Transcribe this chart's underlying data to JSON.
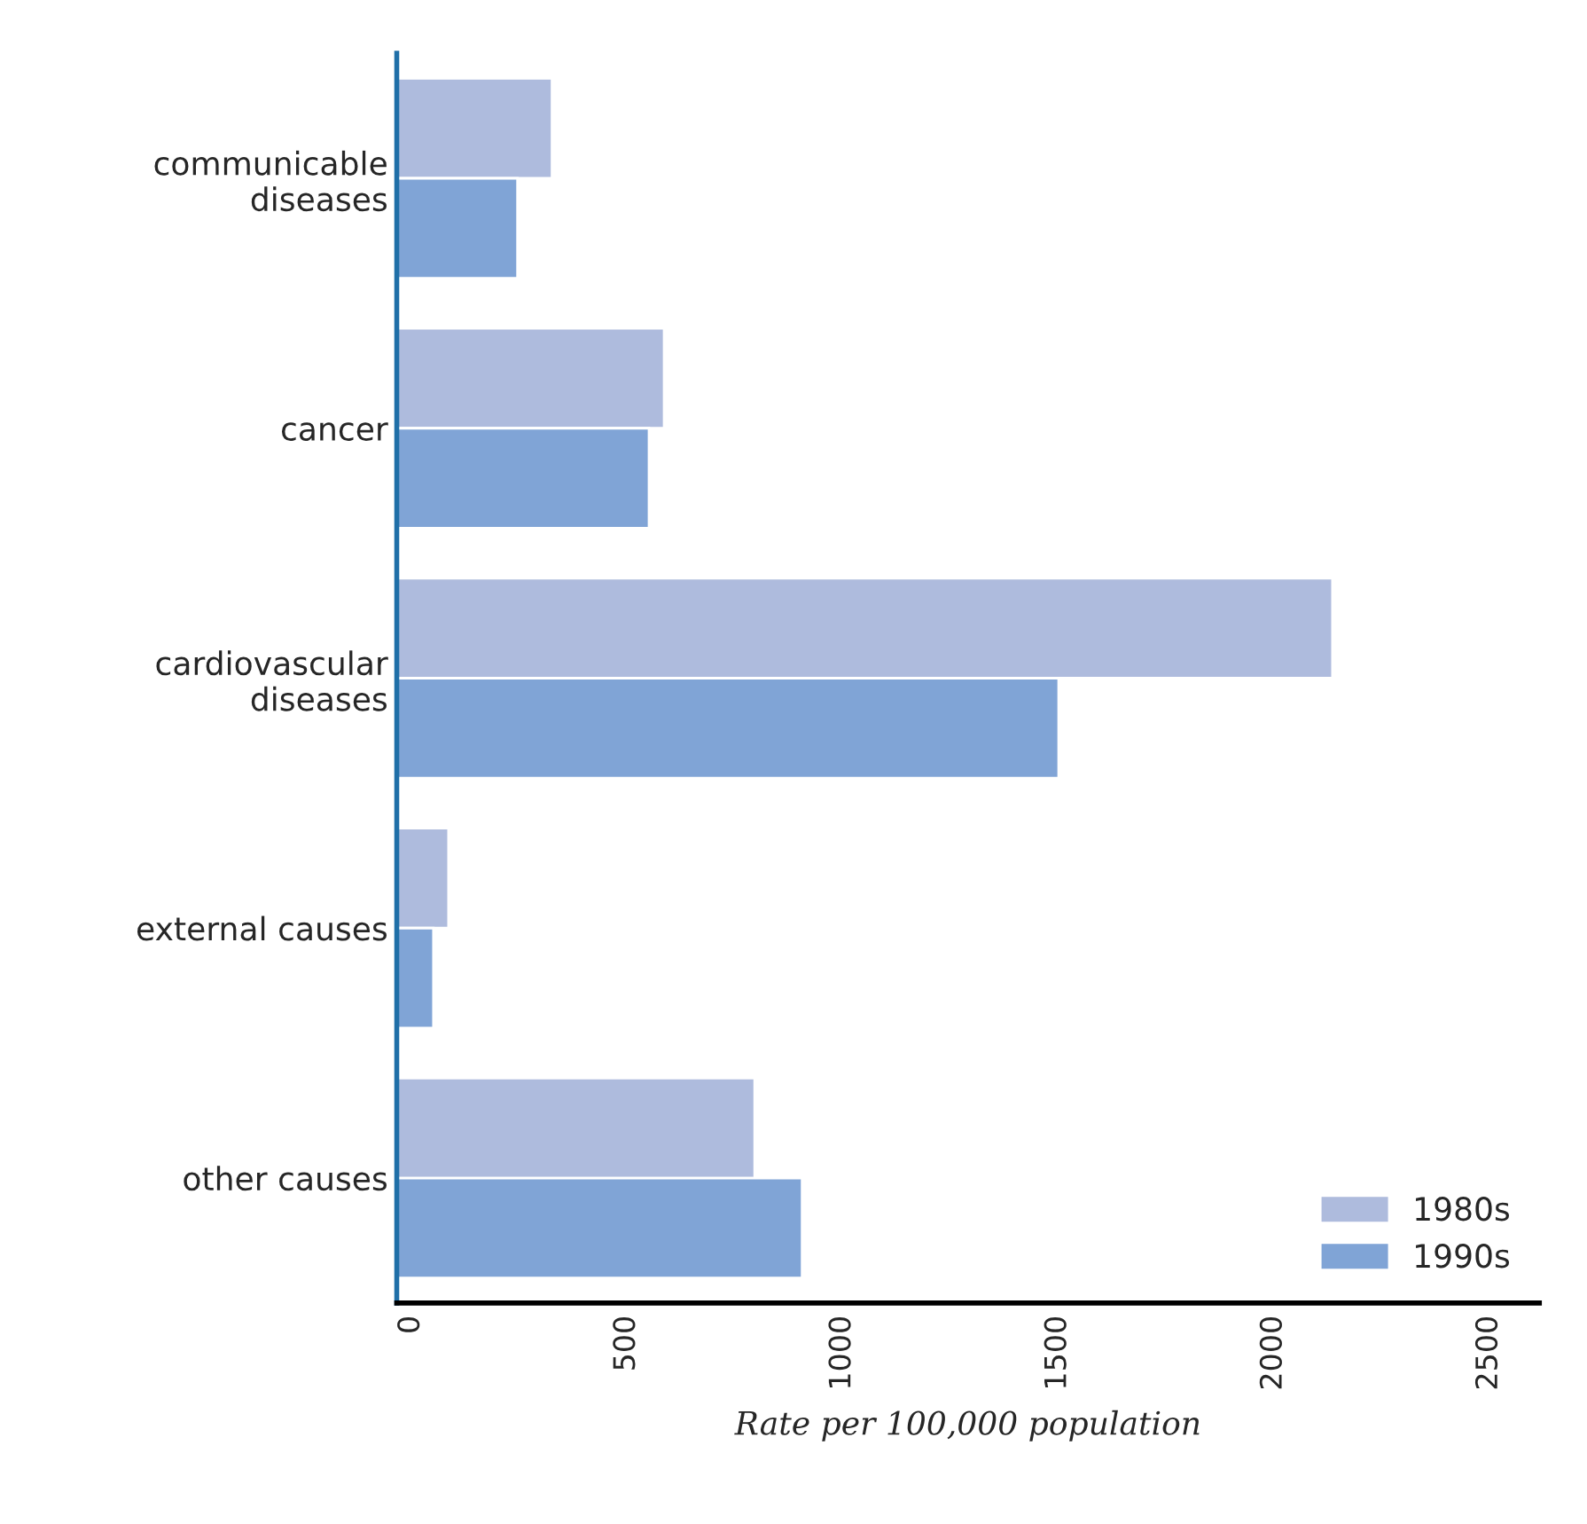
{
  "chart_data": {
    "type": "bar",
    "orientation": "horizontal",
    "xlabel": "Rate per 100,000 population",
    "categories": [
      "communicable\ndiseases",
      "cancer",
      "cardiovascular\ndiseases",
      "external causes",
      "other causes"
    ],
    "series": [
      {
        "name": "1980s",
        "color": "#aebbdd",
        "values": [
          360,
          620,
          2170,
          120,
          830
        ]
      },
      {
        "name": "1990s",
        "color": "#80a4d6",
        "values": [
          280,
          585,
          1535,
          85,
          940
        ]
      }
    ],
    "xlim": [
      0,
      2650
    ],
    "xticks": [
      0,
      500,
      1000,
      1500,
      2000,
      2500
    ],
    "grid": false,
    "legend": "bottom right"
  }
}
